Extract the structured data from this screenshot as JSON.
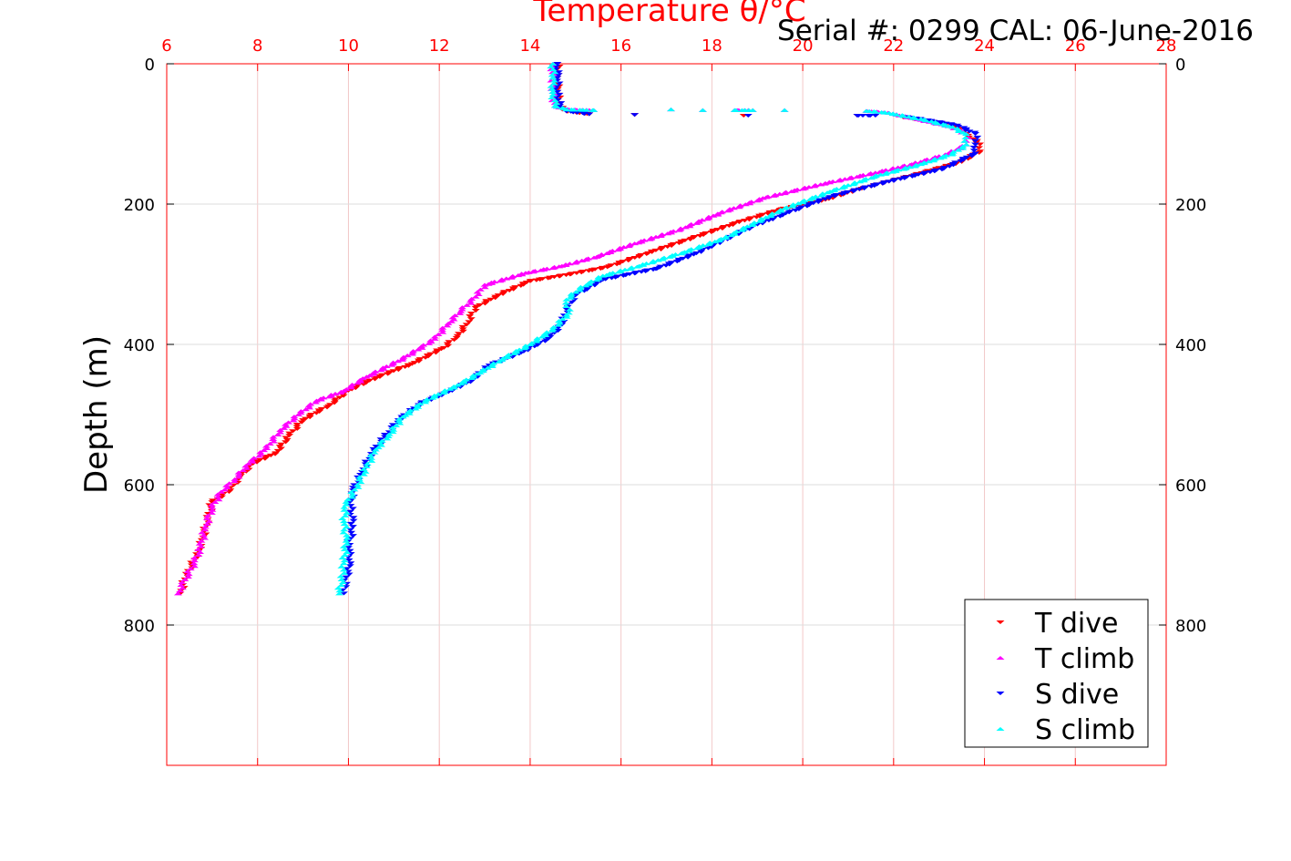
{
  "chart_data": {
    "type": "scatter",
    "title": "Temperature θ/°C",
    "subtitle": "Serial #: 0299 CAL: 06-June-2016",
    "xlabel": "Temperature θ/°C",
    "ylabel": "Depth (m)",
    "xlim": [
      6,
      28
    ],
    "ylim": [
      1000,
      0
    ],
    "xticks": [
      "6",
      "8",
      "10",
      "12",
      "14",
      "16",
      "18",
      "20",
      "22",
      "24",
      "26",
      "28"
    ],
    "yticks": [
      "0",
      "200",
      "400",
      "600",
      "800"
    ],
    "grid": true,
    "legend_position": "bottom-right",
    "series": [
      {
        "name": "T dive",
        "marker": "triangle-down",
        "color": "#ff0000",
        "axis": "top",
        "points": [
          [
            14.6,
            0
          ],
          [
            14.6,
            20
          ],
          [
            14.6,
            40
          ],
          [
            14.65,
            60
          ],
          [
            14.8,
            68
          ],
          [
            15.3,
            72
          ],
          [
            16.3,
            73
          ],
          [
            18.7,
            74
          ],
          [
            21.2,
            74
          ],
          [
            22.2,
            76
          ],
          [
            23.3,
            88
          ],
          [
            23.6,
            100
          ],
          [
            23.9,
            115
          ],
          [
            23.9,
            125
          ],
          [
            23.5,
            140
          ],
          [
            22.5,
            158
          ],
          [
            21.3,
            178
          ],
          [
            20.5,
            194
          ],
          [
            19.5,
            208
          ],
          [
            18.6,
            226
          ],
          [
            17.6,
            248
          ],
          [
            16.6,
            270
          ],
          [
            15.7,
            290
          ],
          [
            14.9,
            300
          ],
          [
            14.0,
            310
          ],
          [
            13.3,
            330
          ],
          [
            12.8,
            348
          ],
          [
            12.6,
            372
          ],
          [
            12.4,
            388
          ],
          [
            12.1,
            405
          ],
          [
            11.4,
            428
          ],
          [
            10.6,
            448
          ],
          [
            10.0,
            466
          ],
          [
            9.6,
            486
          ],
          [
            9.0,
            508
          ],
          [
            8.7,
            530
          ],
          [
            8.4,
            555
          ],
          [
            7.9,
            570
          ],
          [
            7.6,
            590
          ],
          [
            7.4,
            608
          ],
          [
            7.0,
            625
          ],
          [
            6.9,
            650
          ],
          [
            6.8,
            675
          ],
          [
            6.7,
            695
          ],
          [
            6.55,
            715
          ],
          [
            6.4,
            735
          ],
          [
            6.3,
            755
          ]
        ]
      },
      {
        "name": "T climb",
        "marker": "triangle-up",
        "color": "#ff00ff",
        "axis": "top",
        "points": [
          [
            14.5,
            0
          ],
          [
            14.5,
            20
          ],
          [
            14.5,
            40
          ],
          [
            14.55,
            60
          ],
          [
            14.8,
            65
          ],
          [
            15.4,
            66
          ],
          [
            17.1,
            65
          ],
          [
            17.8,
            66
          ],
          [
            18.5,
            66
          ],
          [
            18.9,
            66
          ],
          [
            19.6,
            66
          ],
          [
            21.4,
            67
          ],
          [
            21.9,
            70
          ],
          [
            22.6,
            80
          ],
          [
            23.3,
            90
          ],
          [
            23.6,
            100
          ],
          [
            23.6,
            115
          ],
          [
            23.2,
            128
          ],
          [
            22.4,
            143
          ],
          [
            21.6,
            155
          ],
          [
            20.5,
            170
          ],
          [
            19.2,
            190
          ],
          [
            18.2,
            212
          ],
          [
            17.3,
            236
          ],
          [
            16.3,
            256
          ],
          [
            15.5,
            274
          ],
          [
            14.7,
            288
          ],
          [
            13.9,
            298
          ],
          [
            13.0,
            315
          ],
          [
            12.8,
            332
          ],
          [
            12.5,
            350
          ],
          [
            12.2,
            370
          ],
          [
            11.9,
            392
          ],
          [
            11.2,
            420
          ],
          [
            10.4,
            446
          ],
          [
            9.9,
            466
          ],
          [
            9.3,
            480
          ],
          [
            8.9,
            500
          ],
          [
            8.5,
            522
          ],
          [
            8.2,
            548
          ],
          [
            7.8,
            570
          ],
          [
            7.5,
            592
          ],
          [
            7.2,
            610
          ],
          [
            7.0,
            632
          ],
          [
            6.85,
            660
          ],
          [
            6.75,
            688
          ],
          [
            6.6,
            712
          ],
          [
            6.4,
            735
          ],
          [
            6.25,
            755
          ]
        ]
      },
      {
        "name": "S dive",
        "marker": "triangle-down",
        "color": "#0000ff",
        "axis": "top",
        "points": [
          [
            14.6,
            0
          ],
          [
            14.6,
            20
          ],
          [
            14.6,
            40
          ],
          [
            14.65,
            60
          ],
          [
            14.8,
            68
          ],
          [
            15.3,
            72
          ],
          [
            16.3,
            73
          ],
          [
            18.8,
            74
          ],
          [
            21.2,
            74
          ],
          [
            21.6,
            74
          ],
          [
            22.3,
            76
          ],
          [
            23.4,
            88
          ],
          [
            23.8,
            100
          ],
          [
            23.8,
            115
          ],
          [
            23.8,
            128
          ],
          [
            23.1,
            150
          ],
          [
            21.9,
            168
          ],
          [
            20.6,
            190
          ],
          [
            19.7,
            212
          ],
          [
            18.9,
            232
          ],
          [
            18.2,
            254
          ],
          [
            17.6,
            272
          ],
          [
            16.8,
            292
          ],
          [
            15.6,
            308
          ],
          [
            15.0,
            330
          ],
          [
            14.8,
            350
          ],
          [
            14.7,
            372
          ],
          [
            14.4,
            392
          ],
          [
            13.8,
            412
          ],
          [
            13.1,
            430
          ],
          [
            12.7,
            452
          ],
          [
            12.2,
            468
          ],
          [
            11.6,
            484
          ],
          [
            11.1,
            508
          ],
          [
            10.8,
            532
          ],
          [
            10.5,
            556
          ],
          [
            10.3,
            582
          ],
          [
            10.1,
            608
          ],
          [
            10.05,
            630
          ],
          [
            10.1,
            660
          ],
          [
            10.0,
            690
          ],
          [
            10.05,
            712
          ],
          [
            9.95,
            732
          ],
          [
            9.9,
            755
          ]
        ]
      },
      {
        "name": "S climb",
        "marker": "triangle-up",
        "color": "#00ffff",
        "axis": "top",
        "points": [
          [
            14.5,
            0
          ],
          [
            14.5,
            20
          ],
          [
            14.5,
            40
          ],
          [
            14.55,
            60
          ],
          [
            14.8,
            65
          ],
          [
            15.4,
            66
          ],
          [
            17.1,
            65
          ],
          [
            17.8,
            66
          ],
          [
            18.5,
            66
          ],
          [
            18.9,
            66
          ],
          [
            19.6,
            66
          ],
          [
            21.4,
            67
          ],
          [
            21.9,
            70
          ],
          [
            22.7,
            80
          ],
          [
            23.3,
            90
          ],
          [
            23.6,
            100
          ],
          [
            23.6,
            115
          ],
          [
            23.3,
            128
          ],
          [
            22.6,
            143
          ],
          [
            21.6,
            160
          ],
          [
            20.6,
            182
          ],
          [
            19.6,
            206
          ],
          [
            18.9,
            228
          ],
          [
            18.3,
            248
          ],
          [
            17.4,
            268
          ],
          [
            16.4,
            288
          ],
          [
            15.6,
            302
          ],
          [
            15.1,
            320
          ],
          [
            14.8,
            336
          ],
          [
            14.85,
            355
          ],
          [
            14.5,
            378
          ],
          [
            14.0,
            400
          ],
          [
            13.4,
            420
          ],
          [
            12.9,
            440
          ],
          [
            12.4,
            458
          ],
          [
            11.7,
            480
          ],
          [
            11.2,
            503
          ],
          [
            10.9,
            528
          ],
          [
            10.6,
            550
          ],
          [
            10.4,
            574
          ],
          [
            10.2,
            600
          ],
          [
            9.95,
            628
          ],
          [
            9.9,
            652
          ],
          [
            9.95,
            680
          ],
          [
            9.9,
            712
          ],
          [
            9.85,
            735
          ],
          [
            9.8,
            755
          ]
        ]
      }
    ]
  }
}
